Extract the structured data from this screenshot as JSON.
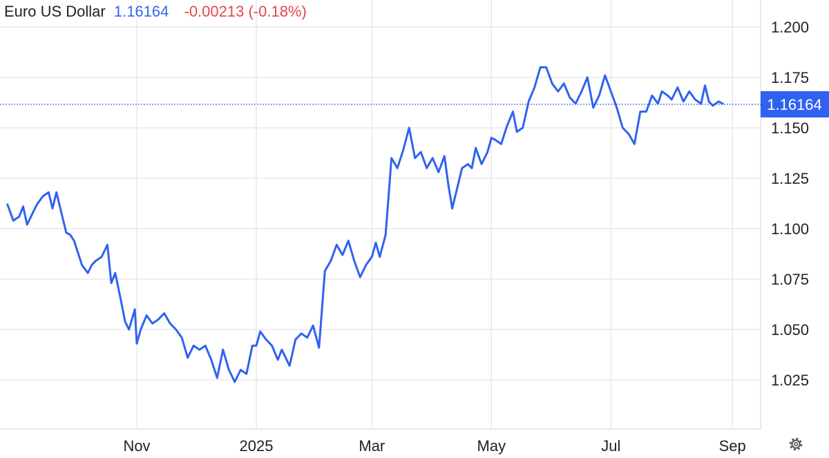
{
  "header": {
    "title": "Euro US Dollar",
    "price": "1.16164",
    "change": "-0.00213 (-0.18%)"
  },
  "colors": {
    "line": "#2f62f0",
    "grid": "#e4e4e4",
    "badge": "#2f62f0",
    "negative": "#e04848"
  },
  "settings_icon": "gear-icon",
  "chart_data": {
    "type": "line",
    "title": "",
    "xlabel": "",
    "ylabel": "",
    "ylim": [
      1.005,
      1.212
    ],
    "y_ticks": [
      "1.200",
      "1.175",
      "1.150",
      "1.125",
      "1.100",
      "1.075",
      "1.050",
      "1.025"
    ],
    "x_ticks": [
      {
        "label": "Nov",
        "date": "2024-11-01"
      },
      {
        "label": "2025",
        "date": "2025-01-01"
      },
      {
        "label": "Mar",
        "date": "2025-03-01"
      },
      {
        "label": "May",
        "date": "2025-05-01"
      },
      {
        "label": "Jul",
        "date": "2025-07-01"
      },
      {
        "label": "Sep",
        "date": "2025-09-01"
      }
    ],
    "grid": true,
    "last_value_label": "1.16164",
    "last_value": 1.16164,
    "series": [
      {
        "x": [
          "2024-08-27",
          "2024-08-30",
          "2024-09-02",
          "2024-09-04",
          "2024-09-06",
          "2024-09-09",
          "2024-09-11",
          "2024-09-14",
          "2024-09-17",
          "2024-09-19",
          "2024-09-21",
          "2024-09-24",
          "2024-09-26",
          "2024-09-28",
          "2024-09-30",
          "2024-10-02",
          "2024-10-04",
          "2024-10-07",
          "2024-10-09",
          "2024-10-11",
          "2024-10-14",
          "2024-10-17",
          "2024-10-19",
          "2024-10-21",
          "2024-10-24",
          "2024-10-26",
          "2024-10-28",
          "2024-10-31",
          "2024-11-01",
          "2024-11-03",
          "2024-11-06",
          "2024-11-09",
          "2024-11-12",
          "2024-11-15",
          "2024-11-18",
          "2024-11-21",
          "2024-11-24",
          "2024-11-27",
          "2024-11-30",
          "2024-12-03",
          "2024-12-06",
          "2024-12-09",
          "2024-12-12",
          "2024-12-15",
          "2024-12-18",
          "2024-12-21",
          "2024-12-24",
          "2024-12-27",
          "2024-12-30",
          "2025-01-01",
          "2025-01-03",
          "2025-01-06",
          "2025-01-09",
          "2025-01-12",
          "2025-01-14",
          "2025-01-16",
          "2025-01-18",
          "2025-01-21",
          "2025-01-24",
          "2025-01-27",
          "2025-01-30",
          "2025-02-02",
          "2025-02-05",
          "2025-02-08",
          "2025-02-11",
          "2025-02-14",
          "2025-02-17",
          "2025-02-20",
          "2025-02-23",
          "2025-02-26",
          "2025-03-01",
          "2025-03-03",
          "2025-03-05",
          "2025-03-08",
          "2025-03-11",
          "2025-03-14",
          "2025-03-17",
          "2025-03-20",
          "2025-03-23",
          "2025-03-26",
          "2025-03-29",
          "2025-04-01",
          "2025-04-04",
          "2025-04-07",
          "2025-04-09",
          "2025-04-11",
          "2025-04-13",
          "2025-04-16",
          "2025-04-19",
          "2025-04-21",
          "2025-04-23",
          "2025-04-26",
          "2025-04-29",
          "2025-05-01",
          "2025-05-03",
          "2025-05-06",
          "2025-05-09",
          "2025-05-12",
          "2025-05-14",
          "2025-05-17",
          "2025-05-20",
          "2025-05-23",
          "2025-05-26",
          "2025-05-29",
          "2025-06-01",
          "2025-06-04",
          "2025-06-07",
          "2025-06-10",
          "2025-06-13",
          "2025-06-16",
          "2025-06-19",
          "2025-06-22",
          "2025-06-25",
          "2025-06-28",
          "2025-07-01",
          "2025-07-04",
          "2025-07-07",
          "2025-07-10",
          "2025-07-13",
          "2025-07-16",
          "2025-07-19",
          "2025-07-22",
          "2025-07-25",
          "2025-07-27",
          "2025-07-30",
          "2025-08-01",
          "2025-08-04",
          "2025-08-07",
          "2025-08-10",
          "2025-08-13",
          "2025-08-16",
          "2025-08-18",
          "2025-08-20",
          "2025-08-22",
          "2025-08-25",
          "2025-08-27"
        ],
        "values": [
          1.112,
          1.104,
          1.106,
          1.111,
          1.102,
          1.108,
          1.112,
          1.116,
          1.118,
          1.11,
          1.118,
          1.106,
          1.098,
          1.097,
          1.094,
          1.088,
          1.082,
          1.078,
          1.082,
          1.084,
          1.086,
          1.092,
          1.073,
          1.078,
          1.064,
          1.054,
          1.05,
          1.06,
          1.043,
          1.05,
          1.057,
          1.053,
          1.055,
          1.058,
          1.053,
          1.05,
          1.046,
          1.036,
          1.042,
          1.04,
          1.042,
          1.035,
          1.026,
          1.04,
          1.03,
          1.024,
          1.03,
          1.028,
          1.042,
          1.042,
          1.049,
          1.045,
          1.042,
          1.035,
          1.04,
          1.036,
          1.032,
          1.045,
          1.048,
          1.046,
          1.052,
          1.041,
          1.079,
          1.084,
          1.092,
          1.087,
          1.094,
          1.084,
          1.076,
          1.082,
          1.086,
          1.093,
          1.086,
          1.097,
          1.135,
          1.13,
          1.139,
          1.15,
          1.135,
          1.138,
          1.13,
          1.135,
          1.128,
          1.136,
          1.122,
          1.11,
          1.118,
          1.13,
          1.132,
          1.13,
          1.14,
          1.132,
          1.138,
          1.145,
          1.144,
          1.142,
          1.151,
          1.158,
          1.148,
          1.15,
          1.163,
          1.17,
          1.18,
          1.18,
          1.172,
          1.168,
          1.172,
          1.165,
          1.162,
          1.168,
          1.175,
          1.16,
          1.166,
          1.176,
          1.168,
          1.16,
          1.15,
          1.147,
          1.142,
          1.158,
          1.158,
          1.166,
          1.162,
          1.168,
          1.166,
          1.164,
          1.17,
          1.163,
          1.168,
          1.164,
          1.162,
          1.171,
          1.163,
          1.161,
          1.163,
          1.162
        ]
      }
    ]
  }
}
